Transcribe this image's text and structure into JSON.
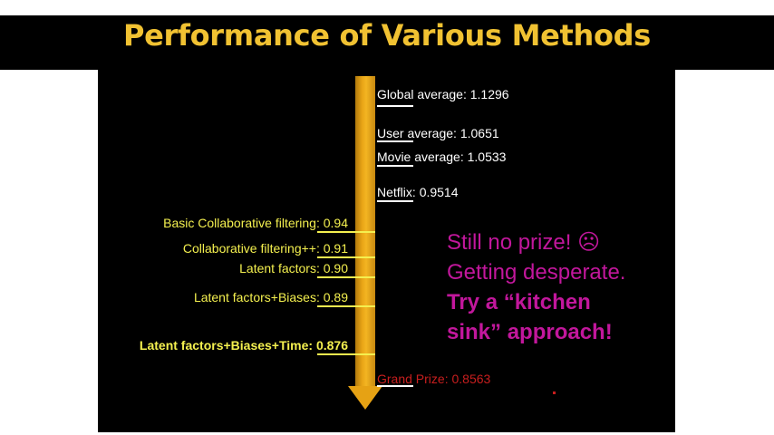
{
  "title": "Performance of Various Methods",
  "colors": {
    "title": "#f1c232",
    "arrow": "#e9a516",
    "left_labels": "#f4f04f",
    "callout": "#c2179c",
    "grand_prize": "#c81e1e"
  },
  "right_items": [
    {
      "label": "Global average:",
      "value": "1.1296"
    },
    {
      "label": "User average:",
      "value": "1.0651"
    },
    {
      "label": "Movie average:",
      "value": "1.0533"
    },
    {
      "label": "Netflix:",
      "value": "0.9514"
    },
    {
      "label": "Grand Prize:",
      "value": "0.8563"
    }
  ],
  "left_items": [
    {
      "label": "Basic Collaborative filtering:",
      "value": "0.94"
    },
    {
      "label": "Collaborative filtering++:",
      "value": "0.91"
    },
    {
      "label": "Latent factors:",
      "value": "0.90"
    },
    {
      "label": "Latent factors+Biases:",
      "value": "0.89"
    },
    {
      "label": "Latent factors+Biases+Time:",
      "value": "0.876"
    }
  ],
  "callout": {
    "line1": "Still no prize!",
    "face": "☹",
    "line2": "Getting desperate.",
    "line3": "Try a “kitchen",
    "line4": "sink” approach!"
  },
  "arrow_icon": "down-arrow-icon"
}
